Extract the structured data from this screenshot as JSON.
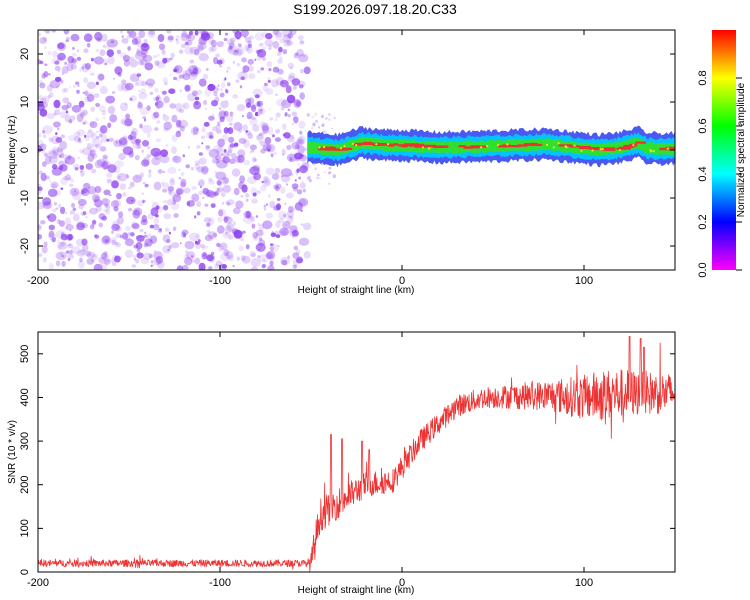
{
  "title": "S199.2026.097.18.20.C33",
  "colors": {
    "noise": "#8a3cf0",
    "band_outer": "#2a3cf0",
    "band_mid": "#00c8ff",
    "band_inner": "#30e030",
    "band_core": "#f03030",
    "snr_line": "#ee3333"
  },
  "chart_data": [
    {
      "type": "heatmap",
      "name": "spectrogram",
      "xlabel": "Height of straight line (km)",
      "ylabel": "Frequency (Hz)",
      "xlim": [
        -200,
        150
      ],
      "ylim": [
        -25,
        25
      ],
      "xticks": [
        -200,
        -100,
        0,
        100
      ],
      "xtick_labels": [
        "-200",
        "-100",
        "0",
        "100"
      ],
      "yticks": [
        20,
        10,
        0,
        -10,
        -20
      ],
      "ytick_labels": [
        "20",
        "10",
        "0",
        "-10",
        "-20"
      ],
      "noise_region_km": [
        -200,
        -52
      ],
      "signal_start_km": -52,
      "signal_frequency_hz": [
        [
          -52,
          0.5
        ],
        [
          -35,
          0
        ],
        [
          -22,
          1.5
        ],
        [
          -10,
          1
        ],
        [
          0,
          1
        ],
        [
          20,
          0.5
        ],
        [
          50,
          0.8
        ],
        [
          80,
          1.2
        ],
        [
          108,
          0
        ],
        [
          120,
          0.5
        ],
        [
          130,
          1.5
        ],
        [
          135,
          0.3
        ],
        [
          150,
          0.3
        ]
      ],
      "colorbar": {
        "label": "Normalized spectral amplitude",
        "range": [
          0,
          1
        ],
        "ticks": [
          0.0,
          0.2,
          0.4,
          0.6,
          0.8
        ],
        "tick_labels": [
          "0.0",
          "0.2",
          "0.4",
          "0.6",
          "0.8"
        ],
        "stops": [
          "#ff00ff",
          "#0000ff",
          "#00ffff",
          "#00ff00",
          "#ffff00",
          "#ff0000"
        ]
      }
    },
    {
      "type": "line",
      "name": "snr",
      "xlabel": "Height of straight line (km)",
      "ylabel": "SNR (10 * v/v)",
      "xlim": [
        -200,
        150
      ],
      "ylim": [
        0,
        550
      ],
      "xticks": [
        -200,
        -100,
        0,
        100
      ],
      "xtick_labels": [
        "-200",
        "-100",
        "0",
        "100"
      ],
      "yticks": [
        0,
        100,
        200,
        300,
        400,
        500
      ],
      "ytick_labels": [
        "0",
        "100",
        "200",
        "300",
        "400",
        "500"
      ],
      "trend": [
        [
          -200,
          20
        ],
        [
          -50,
          20
        ],
        [
          -45,
          130
        ],
        [
          -20,
          200
        ],
        [
          -5,
          210
        ],
        [
          10,
          300
        ],
        [
          20,
          340
        ],
        [
          30,
          380
        ],
        [
          45,
          400
        ],
        [
          80,
          405
        ],
        [
          100,
          400
        ],
        [
          120,
          410
        ],
        [
          150,
          410
        ]
      ],
      "noise_amplitude": [
        [
          -200,
          8
        ],
        [
          -52,
          8
        ],
        [
          -48,
          40
        ],
        [
          -20,
          30
        ],
        [
          20,
          25
        ],
        [
          50,
          25
        ],
        [
          80,
          35
        ],
        [
          110,
          60
        ],
        [
          150,
          45
        ]
      ],
      "peaks": [
        [
          -39,
          315
        ],
        [
          -33,
          305
        ],
        [
          -22,
          300
        ],
        [
          -18,
          280
        ],
        [
          125,
          540
        ],
        [
          131,
          535
        ],
        [
          133,
          515
        ]
      ]
    }
  ]
}
